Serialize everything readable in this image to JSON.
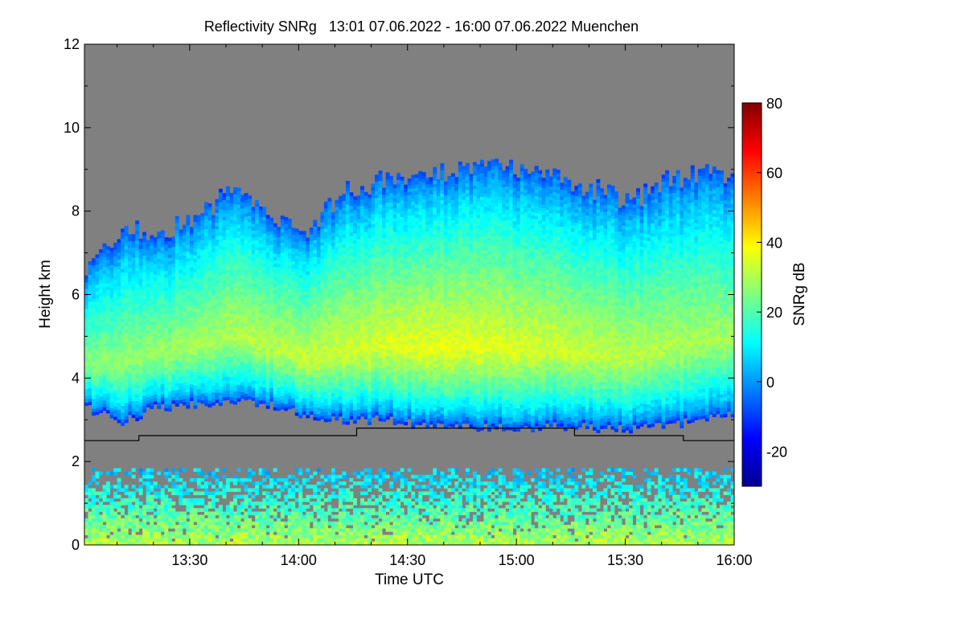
{
  "chart_data": {
    "type": "heatmap",
    "title": "Reflectivity SNRg   13:01 07.06.2022 - 16:00 07.06.2022 Muenchen",
    "xlabel": "Time UTC",
    "ylabel": "Height km",
    "xlim": [
      "13:01",
      "16:00"
    ],
    "ylim": [
      0,
      12
    ],
    "xticks": [
      "13:30",
      "14:00",
      "14:30",
      "15:00",
      "15:30",
      "16:00"
    ],
    "yticks": [
      "0",
      "2",
      "4",
      "6",
      "8",
      "10",
      "12"
    ],
    "colorbar": {
      "label": "SNRg dB",
      "range": [
        -30,
        80
      ],
      "ticks": [
        "-20",
        "0",
        "20",
        "40",
        "60",
        "80"
      ],
      "colormap": "jet",
      "background_color": "#808080"
    },
    "cloud_layer": {
      "time_min": [
        0,
        10,
        20,
        30,
        40,
        50,
        60,
        70,
        80,
        90,
        100,
        110,
        120,
        130,
        140,
        150,
        160,
        170,
        179
      ],
      "base_km": [
        3.3,
        2.95,
        3.3,
        3.35,
        3.5,
        3.35,
        3.1,
        3.0,
        3.0,
        2.9,
        2.85,
        2.8,
        2.8,
        2.85,
        2.8,
        2.8,
        2.85,
        3.0,
        3.1
      ],
      "top_km": [
        6.5,
        7.6,
        7.4,
        7.8,
        8.4,
        7.9,
        7.4,
        8.4,
        8.7,
        8.8,
        8.9,
        9.1,
        9.0,
        8.8,
        8.5,
        8.2,
        8.7,
        8.9,
        8.8
      ],
      "peak_snr_db": 35
    },
    "boundary_layer": {
      "top_km": 1.8,
      "snr_db_range": [
        5,
        30
      ]
    },
    "threshold_line": {
      "time_min": [
        0,
        15,
        15,
        75,
        75,
        135,
        135,
        165,
        165,
        179
      ],
      "height_km": [
        2.5,
        2.5,
        2.62,
        2.62,
        2.8,
        2.8,
        2.62,
        2.62,
        2.5,
        2.5
      ]
    }
  }
}
